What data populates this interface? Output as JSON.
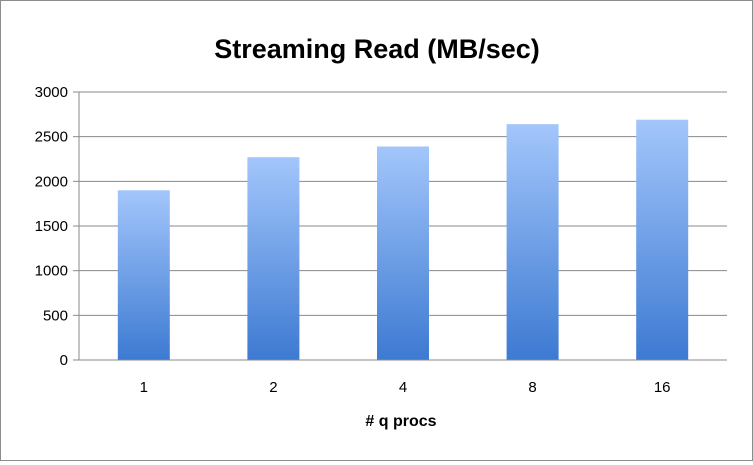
{
  "chart_data": {
    "type": "bar",
    "title": "Streaming Read (MB/sec)",
    "xlabel": "# q procs",
    "ylabel": "",
    "categories": [
      "1",
      "2",
      "4",
      "8",
      "16"
    ],
    "values": [
      1900,
      2270,
      2390,
      2640,
      2690
    ],
    "ylim": [
      0,
      3000
    ],
    "yticks": [
      "0",
      "500",
      "1000",
      "1500",
      "2000",
      "2500",
      "3000"
    ],
    "grid": true,
    "legend": "none",
    "colors": {
      "bar_top": "#a3c6fb",
      "bar_bottom": "#3d7ad2",
      "grid": "#8a8a8a",
      "axis": "#8a8a8a"
    }
  }
}
